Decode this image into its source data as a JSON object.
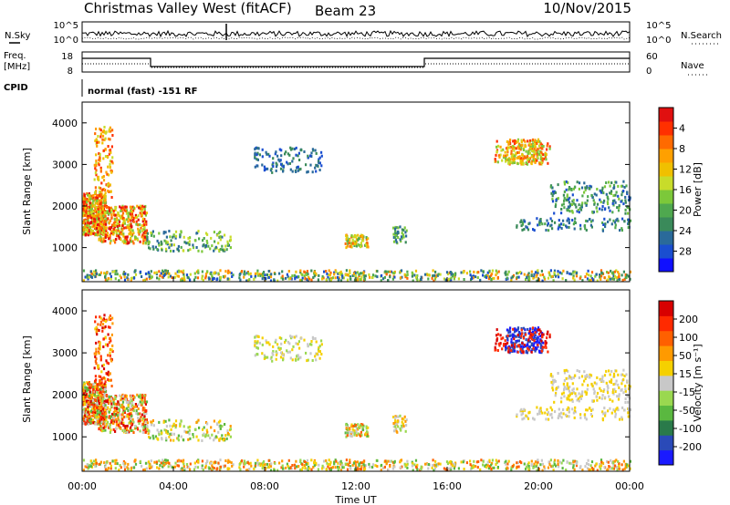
{
  "header": {
    "title": "Christmas Valley West (fitACF)",
    "beam": "Beam 23",
    "date": "10/Nov/2015"
  },
  "param_panels": {
    "noise": {
      "left_label": "N.Sky",
      "right_label": "N.Search",
      "left_ticks": [
        "10^5",
        "10^0"
      ],
      "right_ticks": [
        "10^5",
        "10^0"
      ]
    },
    "freq": {
      "left_label_1": "Freq.",
      "left_label_2": "[MHz]",
      "right_label": "Nave",
      "left_ticks": [
        "18",
        "8"
      ],
      "right_ticks": [
        "60",
        "0"
      ]
    },
    "cpid": {
      "label": "CPID",
      "text": "normal (fast) -151 RF"
    }
  },
  "chart_data": [
    {
      "type": "heatmap",
      "name": "power",
      "ylabel": "Slant Range [km]",
      "yticks": [
        1000,
        2000,
        3000,
        4000
      ],
      "ylim": [
        180,
        4500
      ],
      "xlim": [
        0,
        24
      ],
      "colorbar": {
        "label": "Power [dB]",
        "ticks": [
          "4",
          "8",
          "12",
          "16",
          "20",
          "24",
          "28"
        ],
        "range": [
          0,
          30
        ],
        "colors": [
          "#1010ff",
          "#1a4ed0",
          "#2a6a9a",
          "#3a8a5a",
          "#4fa84f",
          "#7cc83a",
          "#c8dc2a",
          "#f0c000",
          "#ffa000",
          "#ff6a00",
          "#ff3000",
          "#e01010"
        ]
      }
    },
    {
      "type": "heatmap",
      "name": "velocity",
      "ylabel": "Slant Range [km]",
      "yticks": [
        1000,
        2000,
        3000,
        4000
      ],
      "ylim": [
        180,
        4500
      ],
      "xlim": [
        0,
        24
      ],
      "xlabel": "Time UT",
      "xticks": [
        "00:00",
        "04:00",
        "08:00",
        "12:00",
        "16:00",
        "20:00",
        "00:00"
      ],
      "colorbar": {
        "label": "Velocity [m s⁻¹]",
        "ticks": [
          "200",
          "100",
          "50",
          "15",
          "-15",
          "-50",
          "-100",
          "-200"
        ],
        "colors": [
          "#1a1aff",
          "#2a4ab8",
          "#2a7a4a",
          "#5ab840",
          "#9ad850",
          "#c8c8c8",
          "#f5d000",
          "#ff9a00",
          "#ff6000",
          "#ff2a00",
          "#d80000"
        ]
      }
    }
  ]
}
